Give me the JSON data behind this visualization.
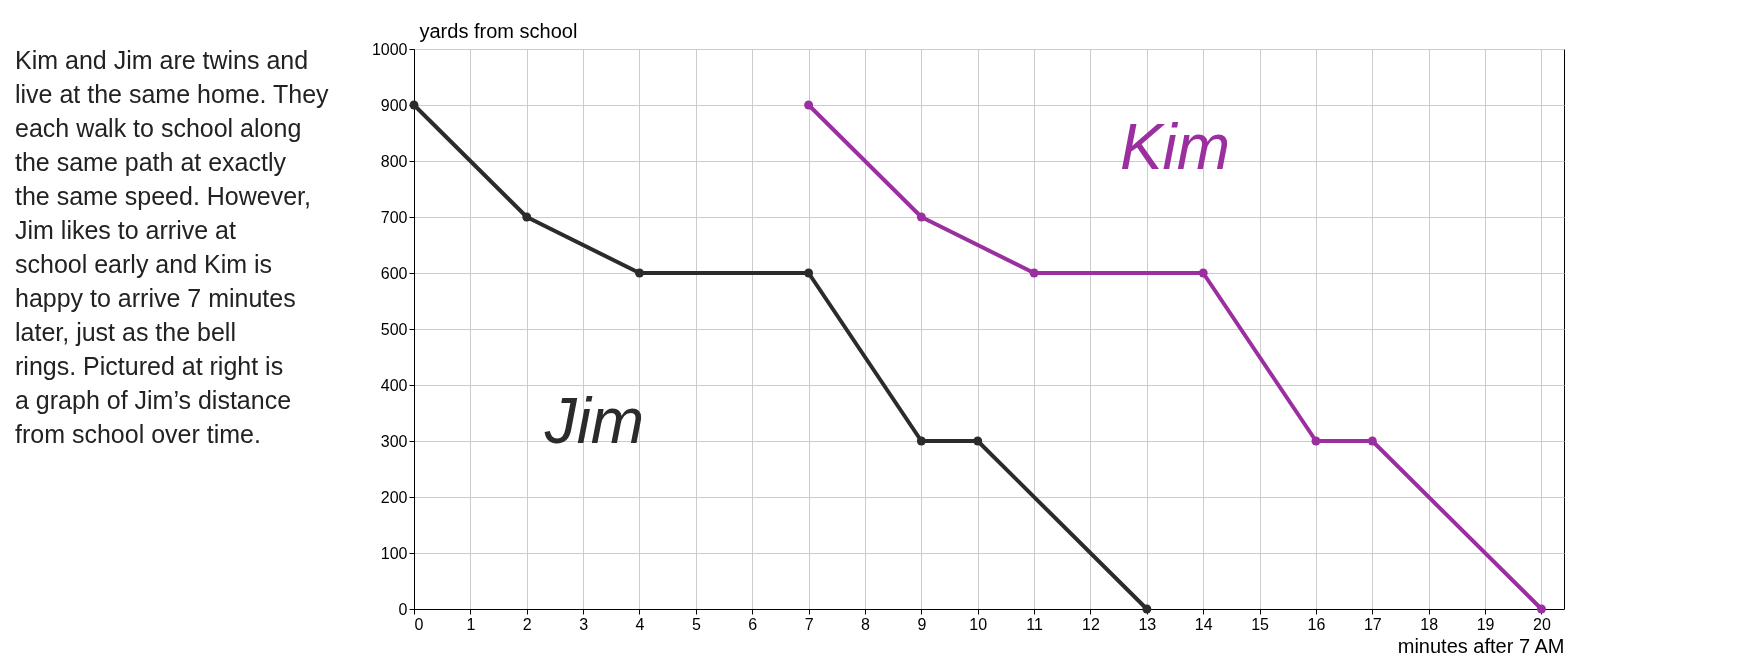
{
  "chart_data": {
    "type": "line",
    "xlabel": "minutes after 7 AM",
    "ylabel": "yards from school",
    "xlim": [
      0,
      20.4
    ],
    "xticks": [
      0,
      1,
      2,
      3,
      4,
      5,
      6,
      7,
      8,
      9,
      10,
      11,
      12,
      13,
      14,
      15,
      16,
      17,
      18,
      19,
      20
    ],
    "ylim": [
      0,
      1000
    ],
    "yticks": [
      0,
      100,
      200,
      300,
      400,
      500,
      600,
      700,
      800,
      900,
      1000
    ],
    "grid": true,
    "legend": false,
    "marker": "circle",
    "line_style": "solid",
    "series": [
      {
        "name": "Jim",
        "color": "#2b2b2b",
        "x": [
          0,
          2,
          4,
          7,
          9,
          10,
          13
        ],
        "values": [
          900,
          700,
          600,
          600,
          300,
          300,
          0
        ]
      },
      {
        "name": "Kim",
        "color": "#9b2fa0",
        "x": [
          7,
          9,
          11,
          14,
          16,
          17,
          20
        ],
        "values": [
          900,
          700,
          600,
          600,
          300,
          300,
          0
        ]
      }
    ],
    "annotations": [
      "Kim and Jim are twins and live at the same home. They each walk to school along the same path at exactly the same speed. However, Jim likes to arrive at school early and Kim is happy to arrive 7 minutes later, just as the bell rings. Pictured at right is a graph of Jim’s distance from school over time."
    ]
  }
}
